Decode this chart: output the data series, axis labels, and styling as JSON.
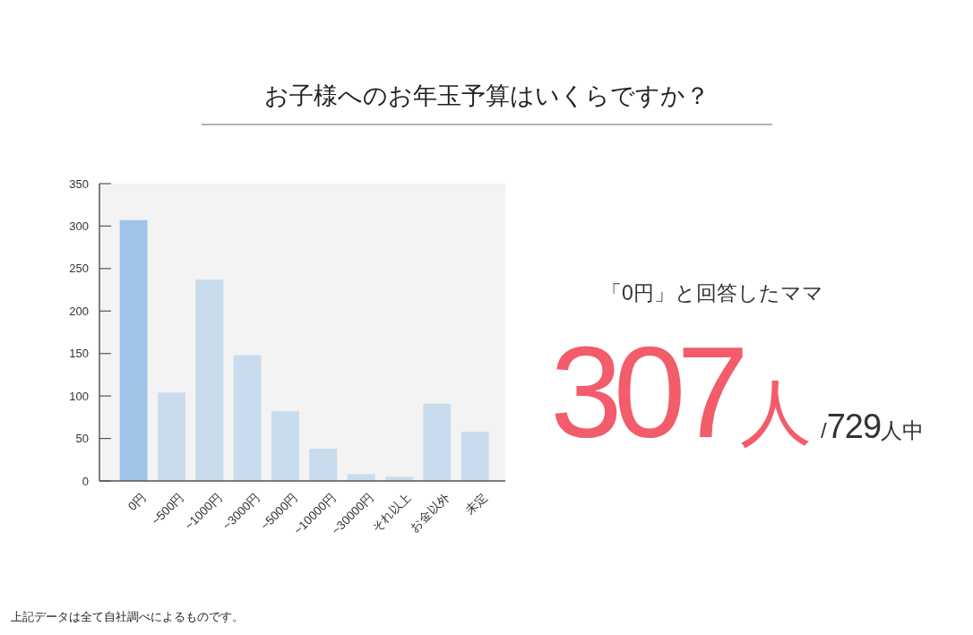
{
  "chart_data": [
    {
      "type": "bar",
      "title": "お子様へのお年玉予算はいくらですか？",
      "categories": [
        "0円",
        "~500円",
        "~1000円",
        "~3000円",
        "~5000円",
        "~10000円",
        "~30000円",
        "それ以上",
        "お金以外",
        "未定"
      ],
      "values": [
        307,
        104,
        237,
        148,
        82,
        38,
        8,
        5,
        91,
        58
      ],
      "colors": [
        "#9fc4e7",
        "#c9dcee",
        "#c9dcee",
        "#c9dcee",
        "#c9dcee",
        "#c9dcee",
        "#c9dcee",
        "#c9dcee",
        "#c9dcee",
        "#c9dcee"
      ],
      "ylim": [
        0,
        350
      ],
      "yticks": [
        0,
        50,
        100,
        150,
        200,
        250,
        300,
        350
      ],
      "annotations": [
        "上記データは全て自社調べによるものです。"
      ]
    },
    {
      "type": "other",
      "title": "「0円」と回答したママ",
      "annotations": [
        "307人",
        "/729人中"
      ]
    }
  ]
}
